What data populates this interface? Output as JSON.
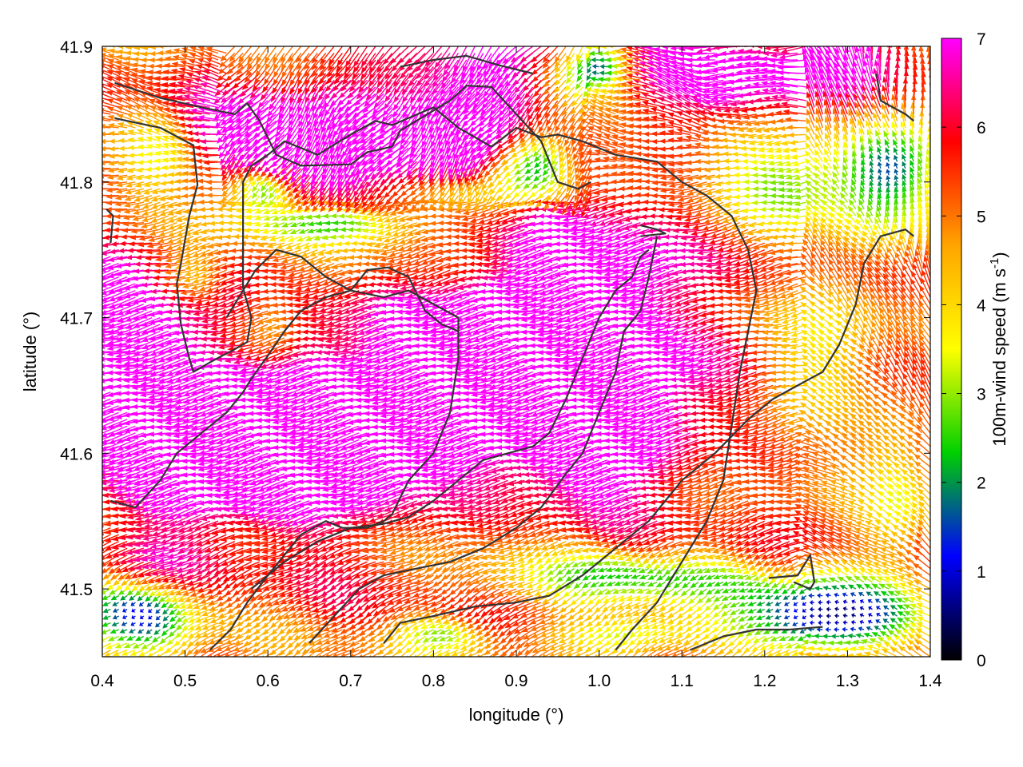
{
  "chart_data": {
    "type": "vector-field",
    "xlabel": "longitude (°)",
    "ylabel": "latitude (°)",
    "xlim": [
      0.4,
      1.4
    ],
    "ylim": [
      41.45,
      41.9
    ],
    "x_ticks": [
      "0.4",
      "0.5",
      "0.6",
      "0.7",
      "0.8",
      "0.9",
      "1.0",
      "1.1",
      "1.2",
      "1.3",
      "1.4"
    ],
    "y_ticks": [
      "41.5",
      "41.6",
      "41.7",
      "41.8",
      "41.9"
    ],
    "x_tick_values": [
      0.4,
      0.5,
      0.6,
      0.7,
      0.8,
      0.9,
      1.0,
      1.1,
      1.2,
      1.3,
      1.4
    ],
    "y_tick_values": [
      41.5,
      41.6,
      41.7,
      41.8,
      41.9
    ],
    "colorbar": {
      "label_main": "100m-wind speed (m s",
      "label_sup": "-1",
      "label_close": ")",
      "range": [
        0,
        7
      ],
      "ticks": [
        "0",
        "1",
        "2",
        "3",
        "4",
        "5",
        "6",
        "7"
      ],
      "tick_values": [
        0,
        1,
        2,
        3,
        4,
        5,
        6,
        7
      ],
      "palette": [
        "#000000",
        "#0000ff",
        "#00d000",
        "#ffff00",
        "#ffa500",
        "#ff0000",
        "#ff00ff"
      ]
    },
    "grid": false,
    "field": {
      "lon_step": 0.01,
      "lat_step": 0.005,
      "speed_cap": 7
    },
    "coastlines": [
      [
        [
          0.41,
          41.755
        ],
        [
          0.413,
          41.775
        ],
        [
          0.405,
          41.78
        ]
      ],
      [
        [
          0.415,
          41.873
        ],
        [
          0.47,
          41.862
        ],
        [
          0.52,
          41.855
        ],
        [
          0.56,
          41.85
        ],
        [
          0.575,
          41.858
        ],
        [
          0.59,
          41.845
        ],
        [
          0.61,
          41.82
        ],
        [
          0.64,
          41.812
        ],
        [
          0.7,
          41.813
        ],
        [
          0.72,
          41.822
        ],
        [
          0.75,
          41.826
        ],
        [
          0.76,
          41.838
        ],
        [
          0.82,
          41.86
        ],
        [
          0.84,
          41.871
        ],
        [
          0.87,
          41.87
        ],
        [
          0.9,
          41.85
        ],
        [
          0.93,
          41.83
        ],
        [
          0.95,
          41.8
        ],
        [
          0.975,
          41.795
        ],
        [
          0.99,
          41.8
        ]
      ],
      [
        [
          0.415,
          41.847
        ],
        [
          0.47,
          41.84
        ],
        [
          0.51,
          41.827
        ],
        [
          0.515,
          41.798
        ],
        [
          0.505,
          41.775
        ],
        [
          0.495,
          41.74
        ],
        [
          0.49,
          41.725
        ],
        [
          0.495,
          41.695
        ],
        [
          0.505,
          41.67
        ],
        [
          0.51,
          41.66
        ],
        [
          0.53,
          41.667
        ],
        [
          0.545,
          41.672
        ],
        [
          0.555,
          41.675
        ],
        [
          0.575,
          41.682
        ],
        [
          0.58,
          41.7
        ],
        [
          0.57,
          41.722
        ],
        [
          0.57,
          41.8
        ],
        [
          0.58,
          41.812
        ],
        [
          0.6,
          41.82
        ],
        [
          0.62,
          41.83
        ],
        [
          0.66,
          41.82
        ],
        [
          0.7,
          41.835
        ],
        [
          0.73,
          41.845
        ],
        [
          0.75,
          41.842
        ],
        [
          0.8,
          41.855
        ],
        [
          0.83,
          41.84
        ],
        [
          0.87,
          41.826
        ],
        [
          0.9,
          41.84
        ],
        [
          0.93,
          41.833
        ],
        [
          0.95,
          41.835
        ],
        [
          0.98,
          41.83
        ],
        [
          1.02,
          41.82
        ],
        [
          1.07,
          41.815
        ],
        [
          1.1,
          41.8
        ],
        [
          1.13,
          41.79
        ],
        [
          1.16,
          41.775
        ],
        [
          1.18,
          41.75
        ],
        [
          1.19,
          41.72
        ],
        [
          1.18,
          41.69
        ],
        [
          1.17,
          41.66
        ],
        [
          1.16,
          41.62
        ],
        [
          1.15,
          41.58
        ],
        [
          1.13,
          41.55
        ],
        [
          1.1,
          41.52
        ],
        [
          1.07,
          41.49
        ],
        [
          1.04,
          41.47
        ],
        [
          1.02,
          41.455
        ]
      ],
      [
        [
          0.55,
          41.7
        ],
        [
          0.585,
          41.735
        ],
        [
          0.61,
          41.75
        ],
        [
          0.64,
          41.745
        ],
        [
          0.67,
          41.73
        ],
        [
          0.7,
          41.72
        ],
        [
          0.74,
          41.715
        ],
        [
          0.77,
          41.72
        ],
        [
          0.8,
          41.71
        ],
        [
          0.83,
          41.7
        ],
        [
          0.83,
          41.67
        ],
        [
          0.82,
          41.63
        ],
        [
          0.8,
          41.6
        ],
        [
          0.77,
          41.58
        ],
        [
          0.75,
          41.555
        ],
        [
          0.74,
          41.55
        ],
        [
          0.72,
          41.545
        ],
        [
          0.69,
          41.545
        ],
        [
          0.67,
          41.55
        ],
        [
          0.64,
          41.54
        ],
        [
          0.62,
          41.525
        ],
        [
          0.6,
          41.51
        ],
        [
          0.575,
          41.49
        ],
        [
          0.555,
          41.47
        ],
        [
          0.53,
          41.455
        ]
      ],
      [
        [
          0.41,
          41.565
        ],
        [
          0.44,
          41.56
        ],
        [
          0.47,
          41.58
        ],
        [
          0.49,
          41.6
        ],
        [
          0.52,
          41.615
        ],
        [
          0.55,
          41.63
        ],
        [
          0.57,
          41.645
        ],
        [
          0.58,
          41.655
        ],
        [
          0.6,
          41.672
        ],
        [
          0.62,
          41.69
        ],
        [
          0.64,
          41.705
        ],
        [
          0.67,
          41.715
        ],
        [
          0.7,
          41.72
        ],
        [
          0.72,
          41.735
        ],
        [
          0.745,
          41.737
        ],
        [
          0.77,
          41.73
        ],
        [
          0.79,
          41.705
        ],
        [
          0.81,
          41.695
        ],
        [
          0.83,
          41.69
        ]
      ],
      [
        [
          0.58,
          41.5
        ],
        [
          0.6,
          41.51
        ],
        [
          0.62,
          41.52
        ],
        [
          0.66,
          41.535
        ],
        [
          0.7,
          41.545
        ],
        [
          0.74,
          41.548
        ],
        [
          0.77,
          41.553
        ],
        [
          0.8,
          41.565
        ],
        [
          0.83,
          41.58
        ],
        [
          0.86,
          41.595
        ],
        [
          0.89,
          41.6
        ],
        [
          0.92,
          41.605
        ],
        [
          0.94,
          41.615
        ],
        [
          0.96,
          41.64
        ],
        [
          0.98,
          41.67
        ],
        [
          1.0,
          41.7
        ],
        [
          1.02,
          41.72
        ],
        [
          1.04,
          41.73
        ],
        [
          1.05,
          41.745
        ],
        [
          1.06,
          41.75
        ]
      ],
      [
        [
          0.65,
          41.46
        ],
        [
          0.68,
          41.48
        ],
        [
          0.71,
          41.5
        ],
        [
          0.74,
          41.51
        ],
        [
          0.78,
          41.515
        ],
        [
          0.82,
          41.52
        ],
        [
          0.86,
          41.53
        ],
        [
          0.9,
          41.545
        ],
        [
          0.93,
          41.56
        ],
        [
          0.96,
          41.585
        ],
        [
          0.98,
          41.6
        ],
        [
          1.0,
          41.63
        ],
        [
          1.02,
          41.66
        ],
        [
          1.03,
          41.69
        ],
        [
          1.05,
          41.705
        ],
        [
          1.06,
          41.73
        ],
        [
          1.07,
          41.76
        ]
      ],
      [
        [
          0.74,
          41.46
        ],
        [
          0.76,
          41.475
        ],
        [
          0.8,
          41.48
        ],
        [
          0.85,
          41.487
        ],
        [
          0.9,
          41.49
        ],
        [
          0.94,
          41.495
        ],
        [
          0.98,
          41.51
        ],
        [
          1.02,
          41.53
        ],
        [
          1.06,
          41.55
        ],
        [
          1.1,
          41.58
        ],
        [
          1.14,
          41.6
        ],
        [
          1.18,
          41.625
        ],
        [
          1.21,
          41.64
        ],
        [
          1.24,
          41.65
        ],
        [
          1.27,
          41.66
        ],
        [
          1.29,
          41.68
        ],
        [
          1.31,
          41.71
        ],
        [
          1.32,
          41.74
        ],
        [
          1.34,
          41.76
        ],
        [
          1.37,
          41.765
        ],
        [
          1.38,
          41.76
        ]
      ],
      [
        [
          1.05,
          41.76
        ],
        [
          1.08,
          41.762
        ],
        [
          1.07,
          41.765
        ],
        [
          1.05,
          41.768
        ]
      ],
      [
        [
          1.205,
          41.508
        ],
        [
          1.24,
          41.51
        ],
        [
          1.25,
          41.52
        ],
        [
          1.255,
          41.525
        ],
        [
          1.26,
          41.505
        ],
        [
          1.255,
          41.5
        ],
        [
          1.235,
          41.505
        ]
      ],
      [
        [
          1.11,
          41.455
        ],
        [
          1.15,
          41.465
        ],
        [
          1.19,
          41.47
        ],
        [
          1.23,
          41.47
        ],
        [
          1.27,
          41.472
        ]
      ],
      [
        [
          1.335,
          41.88
        ],
        [
          1.34,
          41.86
        ],
        [
          1.37,
          41.85
        ],
        [
          1.38,
          41.845
        ]
      ],
      [
        [
          0.76,
          41.885
        ],
        [
          0.8,
          41.89
        ],
        [
          0.84,
          41.893
        ],
        [
          0.88,
          41.886
        ],
        [
          0.92,
          41.88
        ]
      ]
    ]
  }
}
